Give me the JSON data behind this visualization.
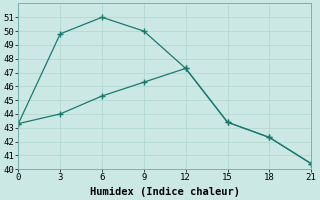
{
  "xlabel": "Humidex (Indice chaleur)",
  "line1_x": [
    0,
    3,
    6,
    9,
    12,
    15,
    18,
    21
  ],
  "line1_y": [
    43.3,
    49.8,
    51.0,
    50.0,
    47.3,
    43.4,
    42.3,
    40.4
  ],
  "line2_x": [
    0,
    3,
    6,
    9,
    12,
    15,
    18,
    21
  ],
  "line2_y": [
    43.3,
    44.0,
    45.3,
    46.3,
    47.3,
    43.4,
    42.3,
    40.4
  ],
  "line_color": "#1a7a6e",
  "bg_color": "#cce8e4",
  "grid_color": "#afd4cf",
  "xlim": [
    0,
    21
  ],
  "ylim": [
    40,
    52
  ],
  "xticks": [
    0,
    3,
    6,
    9,
    12,
    15,
    18,
    21
  ],
  "yticks": [
    40,
    41,
    42,
    43,
    44,
    45,
    46,
    47,
    48,
    49,
    50,
    51
  ],
  "tick_fontsize": 6.5,
  "xlabel_fontsize": 7.5
}
